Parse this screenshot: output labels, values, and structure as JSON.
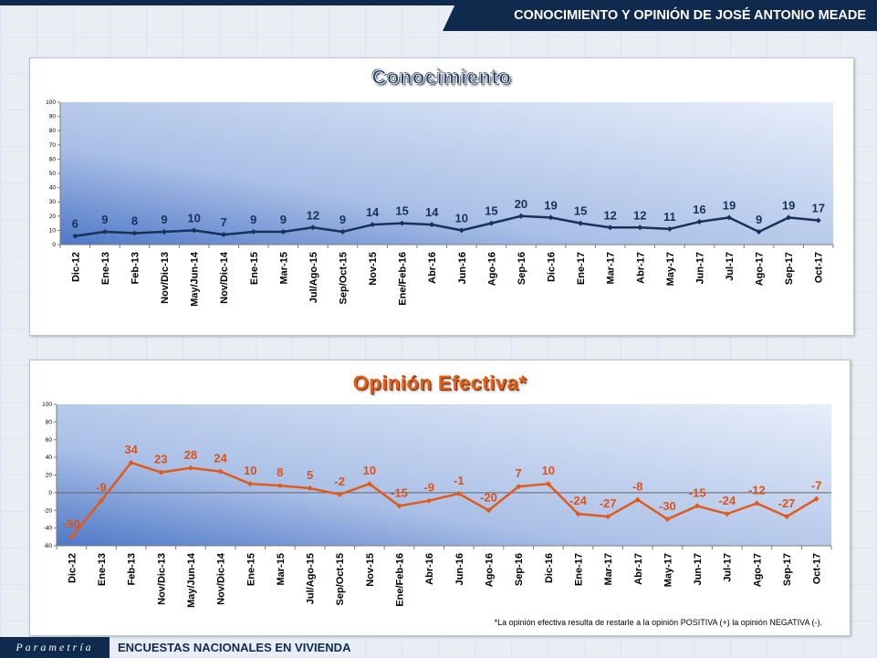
{
  "header": {
    "title": "CONOCIMIENTO Y OPINIÓN DE JOSÉ ANTONIO MEADE"
  },
  "footer": {
    "brand": "Parametría",
    "title": "ENCUESTAS NACIONALES  EN VIVIENDA"
  },
  "colors": {
    "navy": "#0f2a4d",
    "line_conocimiento": "#17315a",
    "line_opinion": "#e05a1b"
  },
  "chart_data": [
    {
      "type": "line",
      "title": "Conocimiento",
      "categories": [
        "Dic-12",
        "Ene-13",
        "Feb-13",
        "Nov/Dic-13",
        "May/Jun-14",
        "Nov/Dic-14",
        "Ene-15",
        "Mar-15",
        "Jul/Ago-15",
        "Sep/Oct-15",
        "Nov-15",
        "Ene/Feb-16",
        "Abr-16",
        "Jun-16",
        "Ago-16",
        "Sep-16",
        "Dic-16",
        "Ene-17",
        "Mar-17",
        "Abr-17",
        "May-17",
        "Jun-17",
        "Jul-17",
        "Ago-17",
        "Sep-17",
        "Oct-17"
      ],
      "values": [
        6,
        9,
        8,
        9,
        10,
        7,
        9,
        9,
        12,
        9,
        14,
        15,
        14,
        10,
        15,
        20,
        19,
        15,
        12,
        12,
        11,
        16,
        19,
        9,
        19,
        17
      ],
      "ylim": [
        0,
        100
      ],
      "yticks": [
        0,
        10,
        20,
        30,
        40,
        50,
        60,
        70,
        80,
        90,
        100
      ],
      "grid": false,
      "legend": "none"
    },
    {
      "type": "line",
      "title": "Opinión Efectiva*",
      "categories": [
        "Dic-12",
        "Ene-13",
        "Feb-13",
        "Nov/Dic-13",
        "May/Jun-14",
        "Nov/Dic-14",
        "Ene-15",
        "Mar-15",
        "Jul/Ago-15",
        "Sep/Oct-15",
        "Nov-15",
        "Ene/Feb-16",
        "Abr-16",
        "Jun-16",
        "Ago-16",
        "Sep-16",
        "Dic-16",
        "Ene-17",
        "Mar-17",
        "Abr-17",
        "May-17",
        "Jun-17",
        "Jul-17",
        "Ago-17",
        "Sep-17",
        "Oct-17"
      ],
      "values": [
        -50,
        -9,
        34,
        23,
        28,
        24,
        10,
        8,
        5,
        -2,
        10,
        -15,
        -9,
        -1,
        -20,
        7,
        10,
        -24,
        -27,
        -8,
        -30,
        -15,
        -24,
        -12,
        -27,
        -7
      ],
      "ylim": [
        -60,
        100
      ],
      "yticks": [
        -60,
        -40,
        -20,
        0,
        20,
        40,
        60,
        80,
        100
      ],
      "grid": false,
      "legend": "none",
      "footnote": "*La opinión efectiva resulta de restarle a la opinión POSITIVA (+) la opinión NEGATIVA (-)."
    }
  ]
}
